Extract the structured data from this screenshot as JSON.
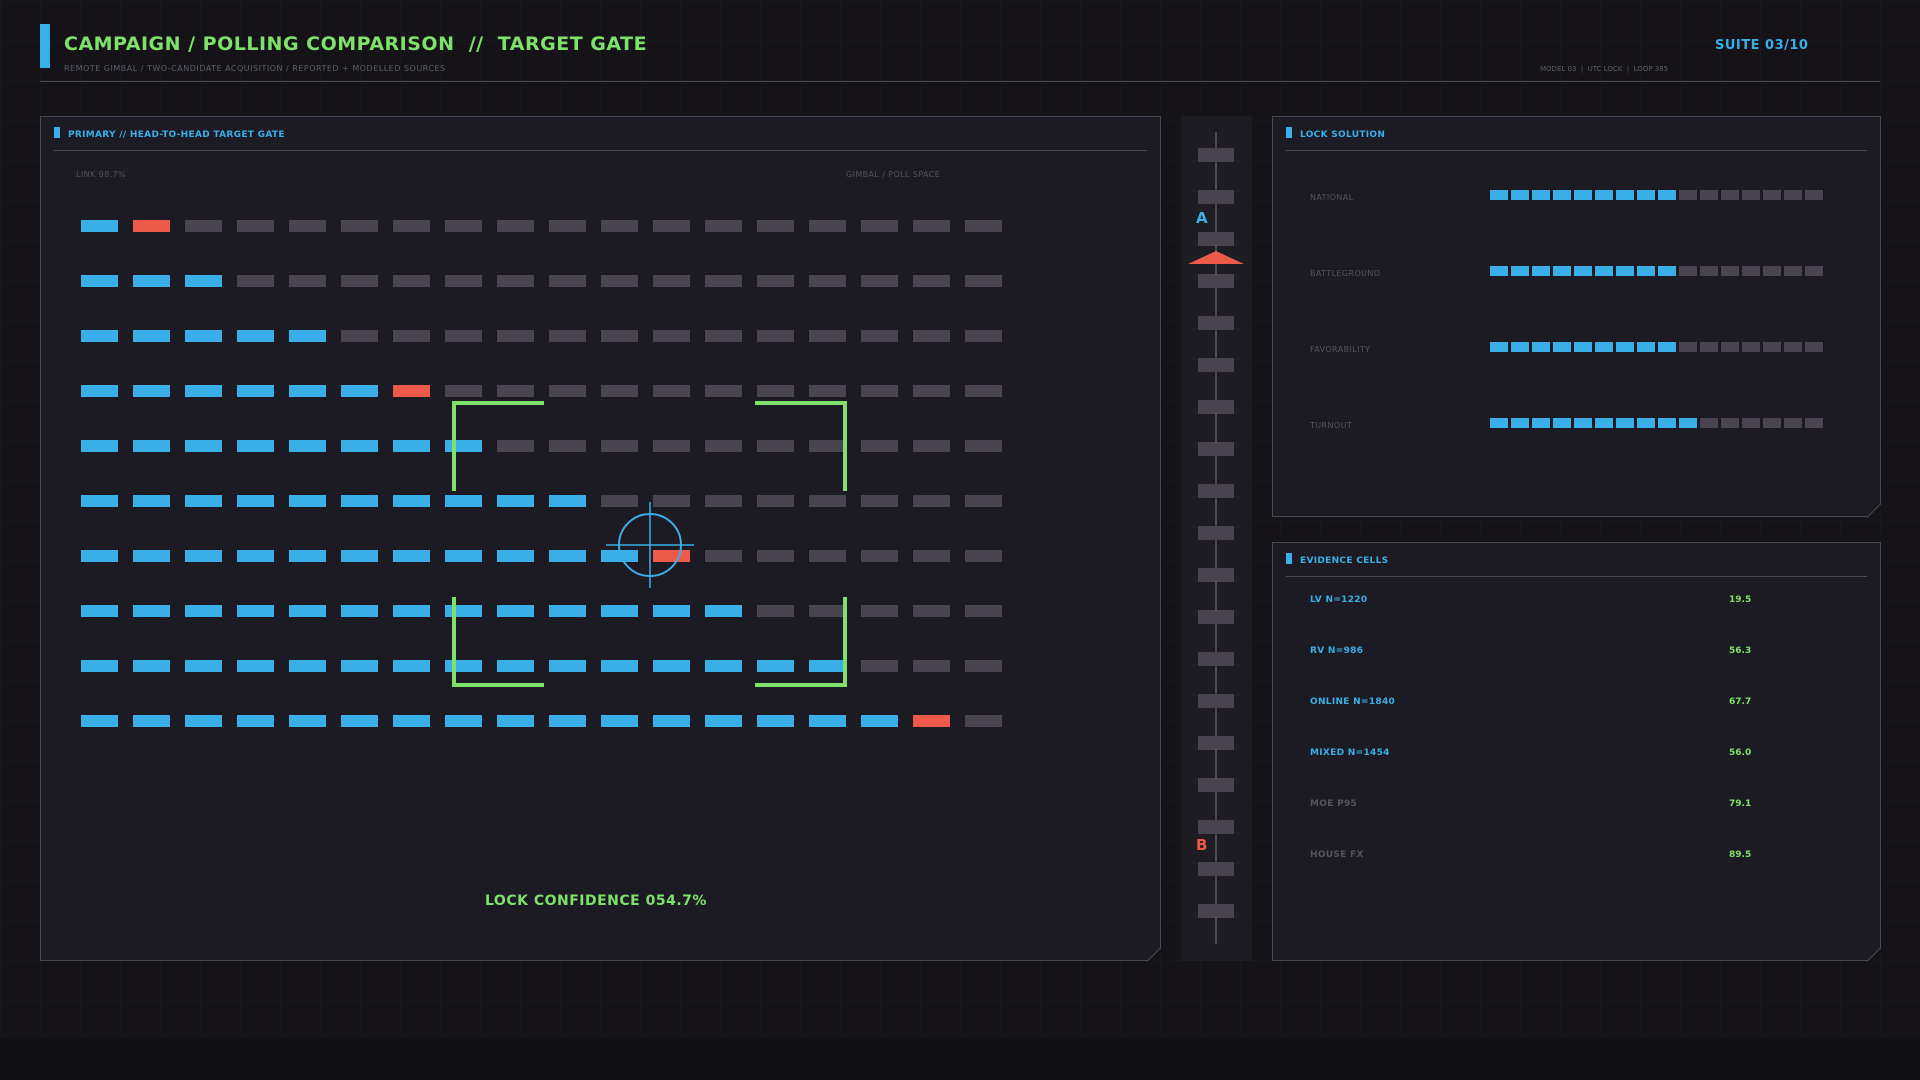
{
  "header": {
    "title": "CAMPAIGN / POLLING COMPARISON  //  TARGET GATE",
    "subtitle": "REMOTE GIMBAL / TWO-CANDIDATE ACQUISITION / REPORTED + MODELLED SOURCES",
    "suite": "SUITE 03/10",
    "meta": "MODEL 03  |  UTC LOCK  |  LOOP 385",
    "accent_color": "#3ab0ea",
    "title_color": "#7ee26a"
  },
  "primary_panel": {
    "title": "PRIMARY // HEAD-TO-HEAD TARGET GATE",
    "link_label": "LINK 98.7%",
    "space_label": "GIMBAL / POLL SPACE",
    "lock_confidence": "LOCK CONFIDENCE 054.7%",
    "grid_legend": {
      "B": "candidate A (blue)",
      "G": "neutral (grey)",
      "R": "candidate B (red)"
    },
    "grid": [
      "BRGGGGGGGGGGGGGGGG",
      "BBBGGGGGGGGGGGGGGG",
      "BBBBBGGGGGGGGGGGGG",
      "BBBBBBRGGGGGGGGGGG",
      "BBBBBBBBGGGGGGGGGG",
      "BBBBBBBBBBGGGGGGGG",
      "BBBBBBBBBBBRGGGGGG",
      "BBBBBBBBBBBBBGGGGG",
      "BBBBBBBBBBBBBBBGGG",
      "BBBBBBBBBBBBBBBBRG"
    ],
    "colors": {
      "blue": "#3aaee6",
      "grey": "#4a4450",
      "red": "#ee5a49",
      "green": "#7ee26a"
    }
  },
  "scale": {
    "marker_a": "A",
    "marker_b": "B",
    "pointer_icon": "triangle-pointer-icon"
  },
  "lock_panel": {
    "title": "LOCK SOLUTION",
    "rows": [
      {
        "label": "NATIONAL",
        "filled": 9,
        "total": 16
      },
      {
        "label": "BATTLEGROUND",
        "filled": 9,
        "total": 16
      },
      {
        "label": "FAVORABILITY",
        "filled": 9,
        "total": 16
      },
      {
        "label": "TURNOUT",
        "filled": 10,
        "total": 16
      }
    ]
  },
  "evidence_panel": {
    "title": "EVIDENCE CELLS",
    "rows": [
      {
        "label": "LV N=1220",
        "value": "19.5",
        "highlight": true
      },
      {
        "label": "RV N=986",
        "value": "56.3",
        "highlight": true
      },
      {
        "label": "ONLINE N=1840",
        "value": "67.7",
        "highlight": true
      },
      {
        "label": "MIXED N=1454",
        "value": "56.0",
        "highlight": true
      },
      {
        "label": "MOE P95",
        "value": "79.1",
        "highlight": false
      },
      {
        "label": "HOUSE FX",
        "value": "89.5",
        "highlight": false
      }
    ]
  }
}
